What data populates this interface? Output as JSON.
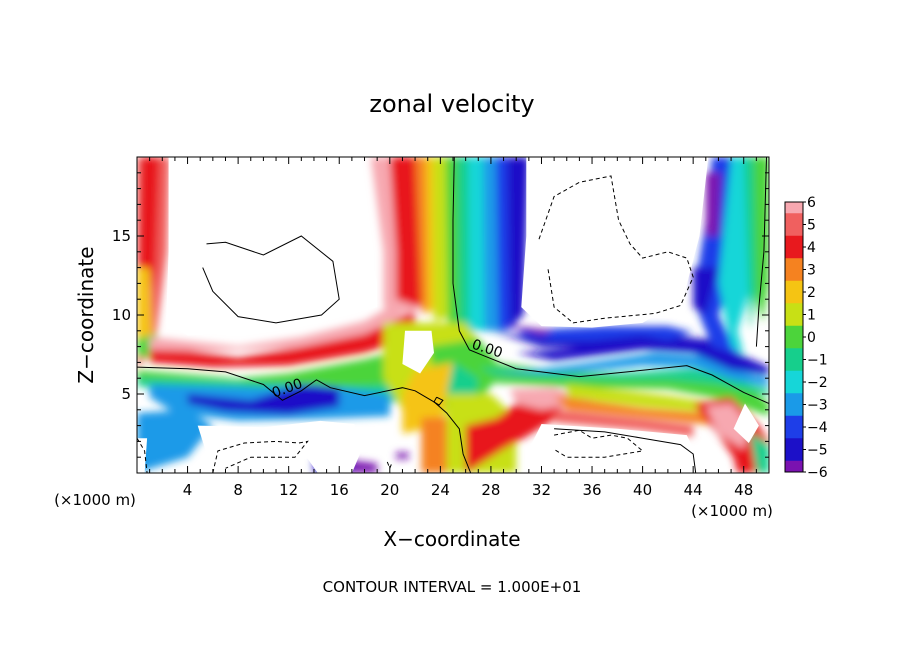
{
  "chart_data": {
    "type": "heatmap",
    "title": "zonal velocity",
    "xlabel": "X−coordinate",
    "ylabel": "Z−coordinate",
    "x_units": "(×1000 m)",
    "y_units": "(×1000 m)",
    "footer": "CONTOUR INTERVAL = 1.000E+01",
    "xlim": [
      0,
      50
    ],
    "ylim": [
      0,
      20
    ],
    "x_ticks": [
      4,
      8,
      12,
      16,
      20,
      24,
      28,
      32,
      36,
      40,
      44,
      48
    ],
    "y_ticks": [
      5,
      10,
      15
    ],
    "colorbar": {
      "levels": [
        "6",
        "5",
        "4",
        "3",
        "2",
        "1",
        "0",
        "−1",
        "−2",
        "−3",
        "−4",
        "−5",
        "−6"
      ],
      "range": [
        -6,
        6
      ]
    },
    "contour_labels": [
      "0.00",
      "0.00"
    ],
    "grid": false
  },
  "palette": {
    "6": "#f7a8b0",
    "5": "#f0605f",
    "4": "#e8191e",
    "3": "#f58220",
    "2": "#f5c413",
    "1": "#c8e015",
    "0": "#4cd43b",
    "-1": "#16cf8c",
    "-2": "#16d6d8",
    "-3": "#1a9ae8",
    "-4": "#1e3ee8",
    "-5": "#1c10c8",
    "-6": "#7a12b0"
  }
}
